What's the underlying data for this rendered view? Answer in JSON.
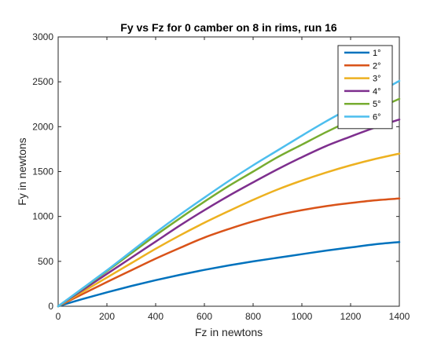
{
  "chart_data": {
    "type": "line",
    "title": "Fy vs Fz for 0 camber on 8 in rims, run 16",
    "xlabel": "Fz in newtons",
    "ylabel": "Fy in newtons",
    "xlim": [
      0,
      1400
    ],
    "ylim": [
      0,
      3000
    ],
    "xticks": [
      0,
      200,
      400,
      600,
      800,
      1000,
      1200,
      1400
    ],
    "yticks": [
      0,
      500,
      1000,
      1500,
      2000,
      2500,
      3000
    ],
    "grid": false,
    "legend_position": "top-right",
    "x": [
      0,
      100,
      200,
      300,
      400,
      500,
      600,
      700,
      800,
      900,
      1000,
      1100,
      1200,
      1300,
      1400
    ],
    "series": [
      {
        "name": "1°",
        "color": "#0072BD",
        "values": [
          0,
          80,
          155,
          225,
          290,
          350,
          405,
          455,
          500,
          540,
          580,
          620,
          655,
          690,
          715
        ]
      },
      {
        "name": "2°",
        "color": "#D95319",
        "values": [
          0,
          135,
          270,
          400,
          530,
          650,
          765,
          860,
          945,
          1015,
          1070,
          1115,
          1150,
          1180,
          1200
        ]
      },
      {
        "name": "3°",
        "color": "#EDB120",
        "values": [
          0,
          160,
          320,
          480,
          640,
          790,
          930,
          1060,
          1185,
          1300,
          1400,
          1490,
          1570,
          1640,
          1700
        ]
      },
      {
        "name": "4°",
        "color": "#7E2F8E",
        "values": [
          0,
          180,
          360,
          540,
          720,
          900,
          1070,
          1230,
          1380,
          1525,
          1660,
          1785,
          1890,
          1990,
          2080
        ]
      },
      {
        "name": "5°",
        "color": "#77AC30",
        "values": [
          0,
          195,
          390,
          590,
          790,
          980,
          1165,
          1340,
          1500,
          1660,
          1800,
          1940,
          2070,
          2190,
          2310
        ]
      },
      {
        "name": "6°",
        "color": "#4DBEEE",
        "values": [
          0,
          200,
          400,
          610,
          820,
          1020,
          1210,
          1395,
          1570,
          1735,
          1900,
          2060,
          2210,
          2360,
          2510
        ]
      }
    ]
  }
}
